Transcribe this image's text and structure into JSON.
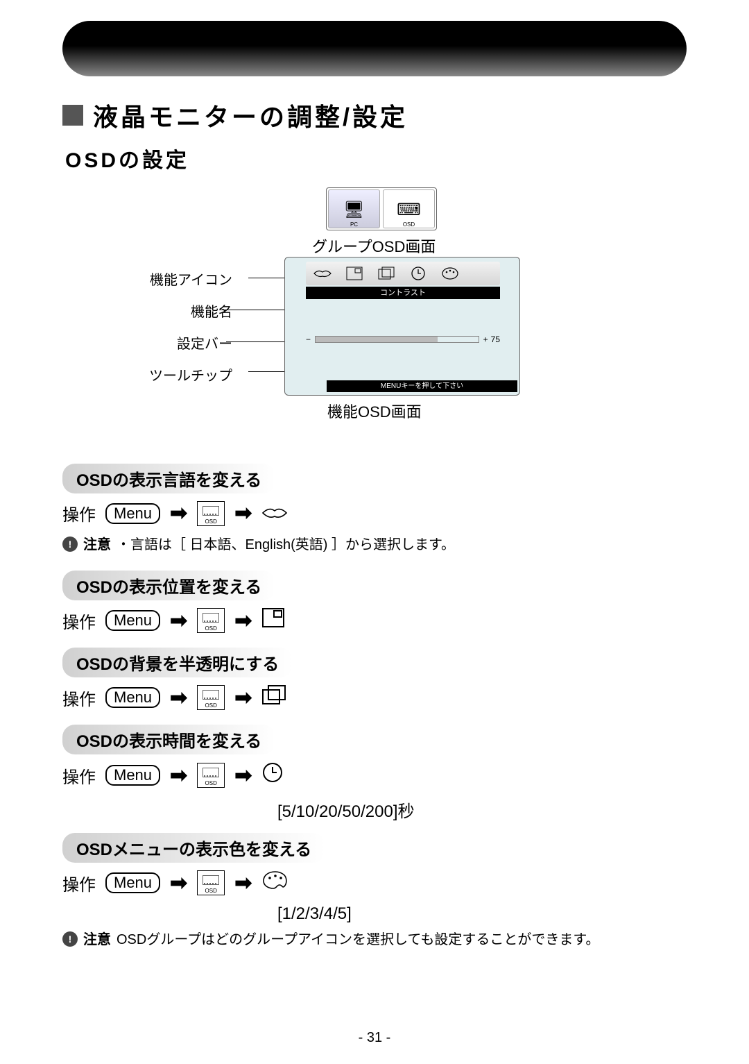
{
  "header": {
    "title_main": "液晶モニターの調整/設定",
    "subtitle": "OSDの設定",
    "title_fontsize": 36,
    "subtitle_fontsize": 30,
    "pill_gradient": [
      "#000000",
      "#888888"
    ]
  },
  "group_osd": {
    "caption": "グループOSD画面",
    "tabs": [
      {
        "label": "PC",
        "icon": "🖥",
        "active": true
      },
      {
        "label": "OSD",
        "icon": "⌨",
        "active": false
      }
    ]
  },
  "func_osd": {
    "caption": "機能OSD画面",
    "labels": {
      "icon_row": "機能アイコン",
      "name": "機能名",
      "bar": "設定バー",
      "tooltip": "ツールチップ"
    },
    "function_name": "コントラスト",
    "icons": [
      "⟺",
      "⧉",
      "▣",
      "◷",
      "⚙"
    ],
    "bar": {
      "minus": "−",
      "plus": "+",
      "value": 75,
      "fill_pct": 75
    },
    "tooltip_text": "MENUキーを押して下さい",
    "panel_bg": "#e1eef0",
    "name_bar_bg": "#000000",
    "name_bar_color": "#ffffff"
  },
  "sections": [
    {
      "title": "OSDの表示言語を変える",
      "final_icon": "lips"
    },
    {
      "title": "OSDの表示位置を変える",
      "final_icon": "position"
    },
    {
      "title": "OSDの背景を半透明にする",
      "final_icon": "window"
    },
    {
      "title": "OSDの表示時間を変える",
      "final_icon": "clock",
      "values": "[5/10/20/50/200]秒"
    },
    {
      "title": "OSDメニューの表示色を変える",
      "final_icon": "palette",
      "values": "[1/2/3/4/5]"
    }
  ],
  "op_label": "操作",
  "menu_label": "Menu",
  "osd_mini_label": "OSD",
  "notes": [
    {
      "label": "注意",
      "text": "・言語は［ 日本語、English(英語) ］から選択します。",
      "after_section": 0
    },
    {
      "label": "注意",
      "text": "OSDグループはどのグループアイコンを選択しても設定することができます。",
      "after_section": 4
    }
  ],
  "page_number": "- 31 -",
  "colors": {
    "section_pill_gradient": [
      "#d0d0d0",
      "#eeeeee",
      "#ffffff"
    ],
    "text": "#000000",
    "note_badge": "#444444"
  }
}
